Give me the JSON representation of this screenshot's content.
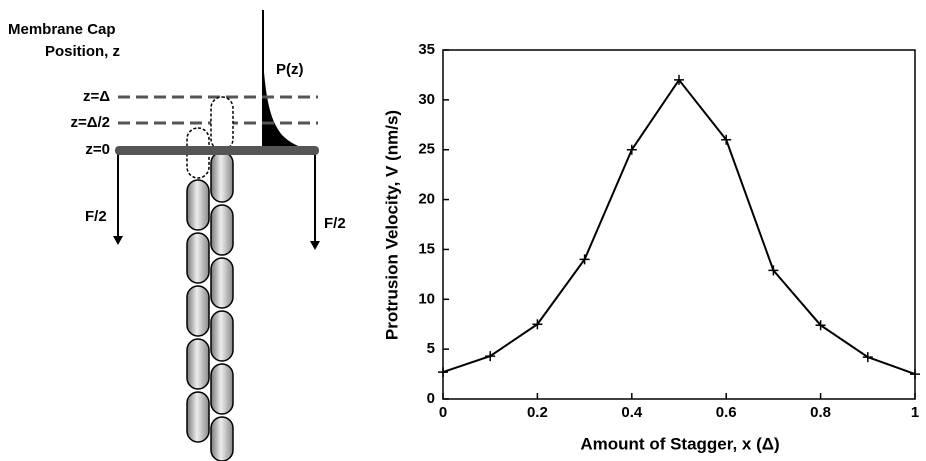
{
  "diagram": {
    "title": [
      "Membrane Cap",
      "Position, z"
    ],
    "distribution_label": "P(z)",
    "levels": [
      "z=Δ",
      "z=Δ/2",
      "z=0"
    ],
    "force_labels": [
      "F/2",
      "F/2"
    ]
  },
  "chart_data": {
    "type": "line",
    "x_label": "Amount of Stagger, x (Δ)",
    "y_label": "Protrusion Velocity, V (nm/s)",
    "x": [
      0,
      0.1,
      0.2,
      0.3,
      0.4,
      0.5,
      0.6,
      0.7,
      0.8,
      0.9,
      1
    ],
    "series": [
      {
        "color": "#000000",
        "values": [
          2.7,
          4.3,
          7.5,
          14,
          25,
          32,
          26,
          12.9,
          7.4,
          4.2,
          2.5
        ]
      }
    ],
    "xlim": [
      0,
      1
    ],
    "ylim": [
      0,
      35
    ],
    "xticks": [
      0,
      0.2,
      0.4,
      0.6,
      0.8,
      1
    ],
    "yticks": [
      0,
      5,
      10,
      15,
      20,
      25,
      30,
      35
    ],
    "grid": false
  }
}
